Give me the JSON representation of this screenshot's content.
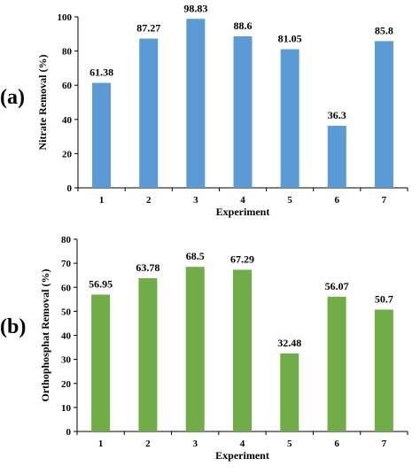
{
  "chart_data": [
    {
      "type": "bar",
      "panel_label": "(a)",
      "categories": [
        "1",
        "2",
        "3",
        "4",
        "5",
        "6",
        "7"
      ],
      "values": [
        61.38,
        87.27,
        98.83,
        88.6,
        81.05,
        36.3,
        85.8
      ],
      "value_labels": [
        "61.38",
        "87.27",
        "98.83",
        "88.6",
        "81.05",
        "36.3",
        "85.8"
      ],
      "xlabel": "Experiment",
      "ylabel": "Nitrate Removal (%)",
      "ylim": [
        0,
        100
      ],
      "yticks": [
        0,
        20,
        40,
        60,
        80,
        100
      ],
      "bar_color": "#5b9bd5",
      "grid": false,
      "legend": "none"
    },
    {
      "type": "bar",
      "panel_label": "(b)",
      "categories": [
        "1",
        "2",
        "3",
        "4",
        "5",
        "6",
        "7"
      ],
      "values": [
        56.95,
        63.78,
        68.5,
        67.29,
        32.48,
        56.07,
        50.7
      ],
      "value_labels": [
        "56.95",
        "63.78",
        "68.5",
        "67.29",
        "32.48",
        "56.07",
        "50.7"
      ],
      "xlabel": "Experiment",
      "ylabel": "Orthophosphat Removal (%)",
      "ylim": [
        0,
        80
      ],
      "yticks": [
        0,
        10,
        20,
        30,
        40,
        50,
        60,
        70,
        80
      ],
      "bar_color": "#70ad47",
      "grid": false,
      "legend": "none"
    }
  ]
}
